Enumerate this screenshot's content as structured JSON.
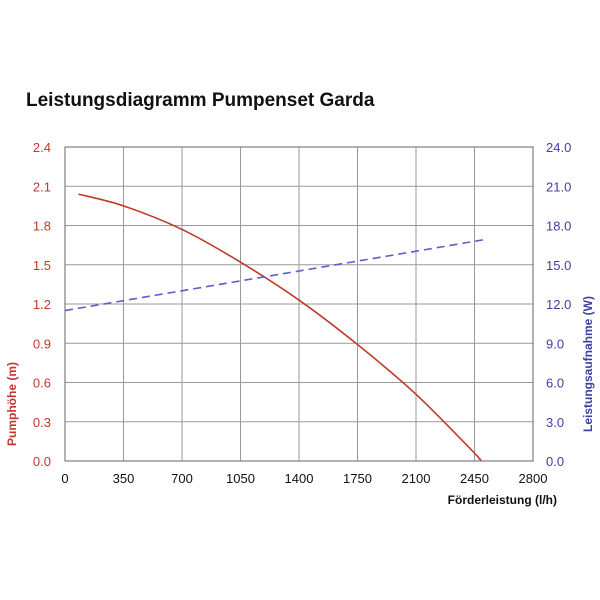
{
  "chart_data": {
    "type": "line",
    "title": "Leistungsdiagramm Pumpenset Garda",
    "xlabel": "Förderleistung (l/h)",
    "ylabel": "Pumphöhe (m)",
    "y2label": "Leistungsaufnahme (W)",
    "xlim": [
      0,
      2800
    ],
    "ylim": [
      0,
      2.4
    ],
    "y2lim": [
      0,
      24
    ],
    "x_ticks": [
      "0",
      "350",
      "700",
      "1050",
      "1400",
      "1750",
      "2100",
      "2450",
      "2800"
    ],
    "y_ticks": [
      "0.0",
      "0.3",
      "0.6",
      "0.9",
      "1.2",
      "1.5",
      "1.8",
      "2.1",
      "2.4"
    ],
    "y2_ticks": [
      "0.0",
      "3.0",
      "6.0",
      "9.0",
      "12.0",
      "15.0",
      "18.0",
      "21.0",
      "24.0"
    ],
    "grid": true,
    "series": [
      {
        "axis": "left",
        "color": "#c0392b",
        "style": "solid",
        "x": [
          80,
          350,
          700,
          1050,
          1400,
          1750,
          2100,
          2450,
          2480
        ],
        "y": [
          2.04,
          1.95,
          1.77,
          1.52,
          1.23,
          0.89,
          0.51,
          0.06,
          0.01
        ]
      },
      {
        "axis": "right",
        "color": "#5b5fc7",
        "style": "dashed",
        "x": [
          0,
          2500
        ],
        "y": [
          11.5,
          16.9
        ]
      }
    ],
    "colors": {
      "left_axis": "#c0392b",
      "right_axis": "#3f3fa0",
      "grid": "#999999",
      "text": "#111111"
    }
  }
}
